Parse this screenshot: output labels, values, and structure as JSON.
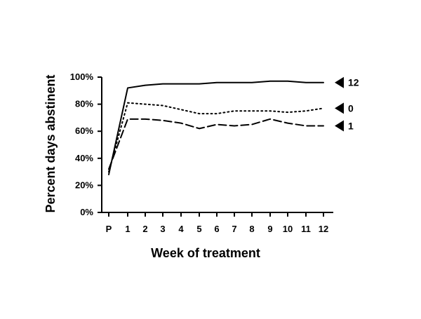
{
  "chart_data": {
    "type": "line",
    "xlabel": "Week of treatment",
    "ylabel": "Percent days abstinent",
    "categories": [
      "P",
      "1",
      "2",
      "3",
      "4",
      "5",
      "6",
      "7",
      "8",
      "9",
      "10",
      "11",
      "12"
    ],
    "ylim": [
      0,
      100
    ],
    "y_ticks": [
      "0%",
      "20%",
      "40%",
      "60%",
      "80%",
      "100%"
    ],
    "grid": false,
    "legend": "right-end markers",
    "series": [
      {
        "name": "12",
        "style": "solid",
        "values": [
          28,
          92,
          94,
          95,
          95,
          95,
          96,
          96,
          96,
          97,
          97,
          96,
          96
        ]
      },
      {
        "name": "0",
        "style": "dotted",
        "values": [
          30,
          81,
          80,
          79,
          76,
          73,
          73,
          75,
          75,
          75,
          74,
          75,
          77
        ]
      },
      {
        "name": "1",
        "style": "dashed",
        "values": [
          32,
          69,
          69,
          68,
          66,
          62,
          65,
          64,
          65,
          69,
          66,
          64,
          64
        ]
      }
    ],
    "colors": {
      "line": "#000000",
      "background": "#ffffff"
    }
  }
}
